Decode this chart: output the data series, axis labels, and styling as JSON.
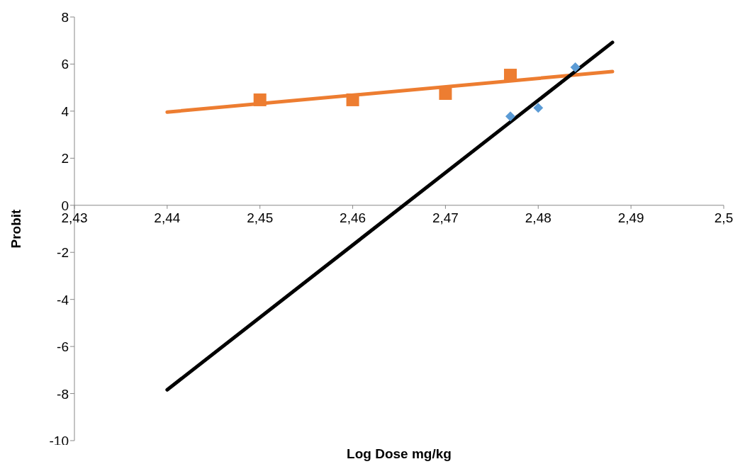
{
  "chart_data": {
    "type": "scatter",
    "xlabel": "Log Dose mg/kg",
    "ylabel": "Probit",
    "xlim": [
      2.43,
      2.5
    ],
    "xticks": [
      {
        "value": 2.43,
        "label": "2,43"
      },
      {
        "value": 2.44,
        "label": "2,44"
      },
      {
        "value": 2.45,
        "label": "2,45"
      },
      {
        "value": 2.46,
        "label": "2,46"
      },
      {
        "value": 2.47,
        "label": "2,47"
      },
      {
        "value": 2.48,
        "label": "2,48"
      },
      {
        "value": 2.49,
        "label": "2,49"
      },
      {
        "value": 2.5,
        "label": "2,5"
      }
    ],
    "ylim": [
      -10,
      8
    ],
    "yticks": [
      -10,
      -8,
      -6,
      -4,
      -2,
      0,
      2,
      4,
      6,
      8
    ],
    "grid": false,
    "legend": false,
    "series": [
      {
        "type": "scatter",
        "marker": "square",
        "color": "#ed7d31",
        "x": [
          2.45,
          2.46,
          2.47,
          2.477
        ],
        "values": [
          4.48,
          4.48,
          4.75,
          5.53
        ]
      },
      {
        "type": "line",
        "marker": "none",
        "color": "#ed7d31",
        "x": [
          2.44,
          2.488
        ],
        "values": [
          3.96,
          5.68
        ]
      },
      {
        "type": "scatter",
        "marker": "diamond",
        "color": "#5b9bd5",
        "x": [
          2.477,
          2.48,
          2.484
        ],
        "values": [
          3.78,
          4.14,
          5.86
        ]
      },
      {
        "type": "line",
        "marker": "none",
        "color": "#000000",
        "x": [
          2.44,
          2.488
        ],
        "values": [
          -7.84,
          6.92
        ]
      }
    ]
  }
}
